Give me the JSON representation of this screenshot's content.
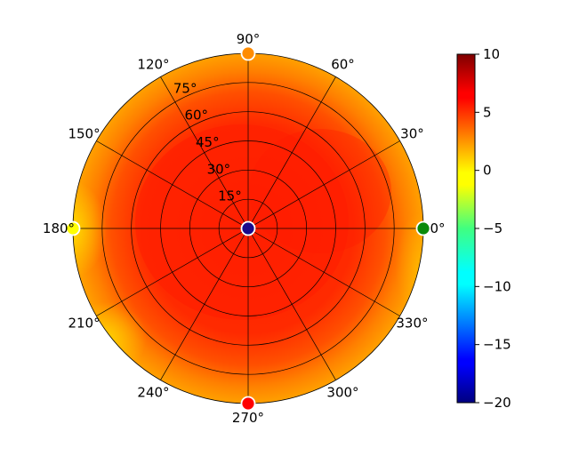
{
  "chart_data": {
    "type": "heatmap",
    "projection": "polar",
    "angle_ticks": [
      "0°",
      "30°",
      "60°",
      "90°",
      "120°",
      "150°",
      "180°",
      "210°",
      "240°",
      "270°",
      "300°",
      "330°"
    ],
    "radial_ticks": [
      "15°",
      "30°",
      "45°",
      "60°",
      "75°"
    ],
    "radial_values": [
      15,
      30,
      45,
      60,
      75
    ],
    "radial_max": 90,
    "colorbar": {
      "colormap": "jet",
      "range": [
        -20,
        10
      ],
      "ticks": [
        "10",
        "5",
        "0",
        "−5",
        "−10",
        "−15",
        "−20"
      ],
      "tick_values": [
        10,
        5,
        0,
        -5,
        -10,
        -15,
        -20
      ]
    },
    "field": {
      "description_values": "approximate value at (angle_deg, radius_deg)",
      "samples": [
        {
          "angle": 0,
          "r": 0,
          "value": 6.5
        },
        {
          "angle": 0,
          "r": 45,
          "value": 6.8
        },
        {
          "angle": 90,
          "r": 45,
          "value": 6.5
        },
        {
          "angle": 180,
          "r": 45,
          "value": 6.2
        },
        {
          "angle": 270,
          "r": 45,
          "value": 6.5
        },
        {
          "angle": 0,
          "r": 90,
          "value": 3.0
        },
        {
          "angle": 180,
          "r": 90,
          "value": 1.0
        },
        {
          "angle": 210,
          "r": 90,
          "value": 1.5
        },
        {
          "angle": 330,
          "r": 90,
          "value": 2.0
        }
      ]
    },
    "markers": [
      {
        "angle": 0,
        "r": 0,
        "color": "#1a0a8c"
      },
      {
        "angle": 0,
        "r": 90,
        "color": "#0a8a0a"
      },
      {
        "angle": 90,
        "r": 90,
        "color": "#ff8c00"
      },
      {
        "angle": 180,
        "r": 90,
        "color": "#ffff00"
      },
      {
        "angle": 270,
        "r": 90,
        "color": "#ff0000"
      }
    ]
  }
}
